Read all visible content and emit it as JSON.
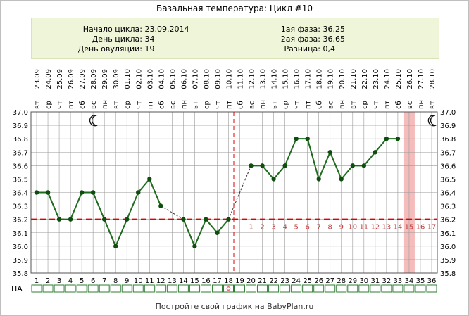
{
  "title": "Базальная температура: Цикл #10",
  "info": {
    "left": [
      {
        "label": "Начало цикла:",
        "value": "23.09.2014"
      },
      {
        "label": "День цикла:",
        "value": "34"
      },
      {
        "label": "День овуляции:",
        "value": "19"
      }
    ],
    "right": [
      {
        "label": "1ая фаза:",
        "value": "36.25"
      },
      {
        "label": "2ая фаза:",
        "value": "36.65"
      },
      {
        "label": "Разница:",
        "value": "0,4"
      }
    ]
  },
  "footer": "Постройте свой график на BabyPlan.ru",
  "pa_label": "ПА",
  "colors": {
    "line": "#1e6b1e",
    "point": "#0d4d0d",
    "coverline": "#e00000",
    "highlight": "#f5bcbc",
    "grid": "#9a9a9a",
    "phase_numbers": "#c04040",
    "pa_border": "#2e7d32"
  },
  "icons": [
    "moon-icon",
    "moon-icon-right"
  ],
  "chart_data": {
    "type": "line",
    "x": [
      1,
      2,
      3,
      4,
      5,
      6,
      7,
      8,
      9,
      10,
      11,
      12,
      13,
      14,
      15,
      16,
      17,
      18,
      19,
      20,
      21,
      22,
      23,
      24,
      25,
      26,
      27,
      28,
      29,
      30,
      31,
      32,
      33,
      34,
      35,
      36
    ],
    "dates": [
      "23.09",
      "24.09",
      "25.09",
      "26.09",
      "27.09",
      "28.09",
      "29.09",
      "30.09",
      "01.10",
      "02.10",
      "03.10",
      "04.10",
      "05.10",
      "06.10",
      "07.10",
      "08.10",
      "09.10",
      "10.10",
      "11.10",
      "12.10",
      "13.10",
      "14.10",
      "15.10",
      "16.10",
      "17.10",
      "18.10",
      "19.10",
      "20.10",
      "21.10",
      "22.10",
      "23.10",
      "24.10",
      "25.10",
      "26.10",
      "27.10",
      "28.10"
    ],
    "weekdays": [
      "вт",
      "ср",
      "чт",
      "пт",
      "сб",
      "вс",
      "пн",
      "вт",
      "ср",
      "чт",
      "пт",
      "сб",
      "вс",
      "пн",
      "вт",
      "ср",
      "чт",
      "пт",
      "сб",
      "вс",
      "пн",
      "вт",
      "ср",
      "чт",
      "пт",
      "сб",
      "вс",
      "пн",
      "вт",
      "ср",
      "чт",
      "пт",
      "сб",
      "вс",
      "пн",
      "вт"
    ],
    "temperatures": [
      36.4,
      36.4,
      36.2,
      36.2,
      36.4,
      36.4,
      36.2,
      36.0,
      36.2,
      36.4,
      36.5,
      36.3,
      null,
      36.2,
      36.0,
      36.2,
      36.1,
      36.2,
      null,
      36.6,
      36.6,
      36.5,
      36.6,
      36.8,
      36.8,
      36.5,
      36.7,
      36.5,
      36.6,
      36.6,
      36.7,
      36.8,
      36.8,
      null,
      null,
      null
    ],
    "y_ticks": [
      "37.0",
      "36.9",
      "36.8",
      "36.7",
      "36.6",
      "36.5",
      "36.4",
      "36.3",
      "36.2",
      "36.1",
      "36.0",
      "35.9",
      "35.8"
    ],
    "ylim": [
      35.8,
      37.0
    ],
    "coverline": 36.2,
    "ovulation_day": 19,
    "highlight_day": 34,
    "second_phase_numbers": [
      "1",
      "2",
      "3",
      "4",
      "5",
      "6",
      "7",
      "8",
      "9",
      "10",
      "11",
      "12",
      "13",
      "14",
      "15",
      "16",
      "17"
    ],
    "pa_marks": [
      {
        "day": 18,
        "symbol": "o"
      }
    ],
    "moon_days": [
      6,
      36
    ],
    "grid": true
  }
}
